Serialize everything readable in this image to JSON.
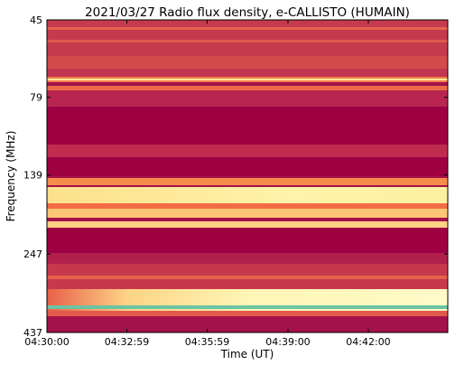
{
  "chart_data": {
    "type": "spectrogram",
    "title": "2021/03/27  Radio flux density, e-CALLISTO (HUMAIN)",
    "x_label": "Time (UT)",
    "y_label": "Frequency (MHz)",
    "xlim": [
      "04:30:00",
      "04:44:58"
    ],
    "xticks": [
      "04:30:00",
      "04:32:59",
      "04:35:59",
      "04:39:00",
      "04:42:00"
    ],
    "ylim": [
      45,
      437
    ],
    "yticks": [
      45,
      79,
      139,
      247,
      437
    ],
    "yscale": "log",
    "y_inverted": true
  }
}
